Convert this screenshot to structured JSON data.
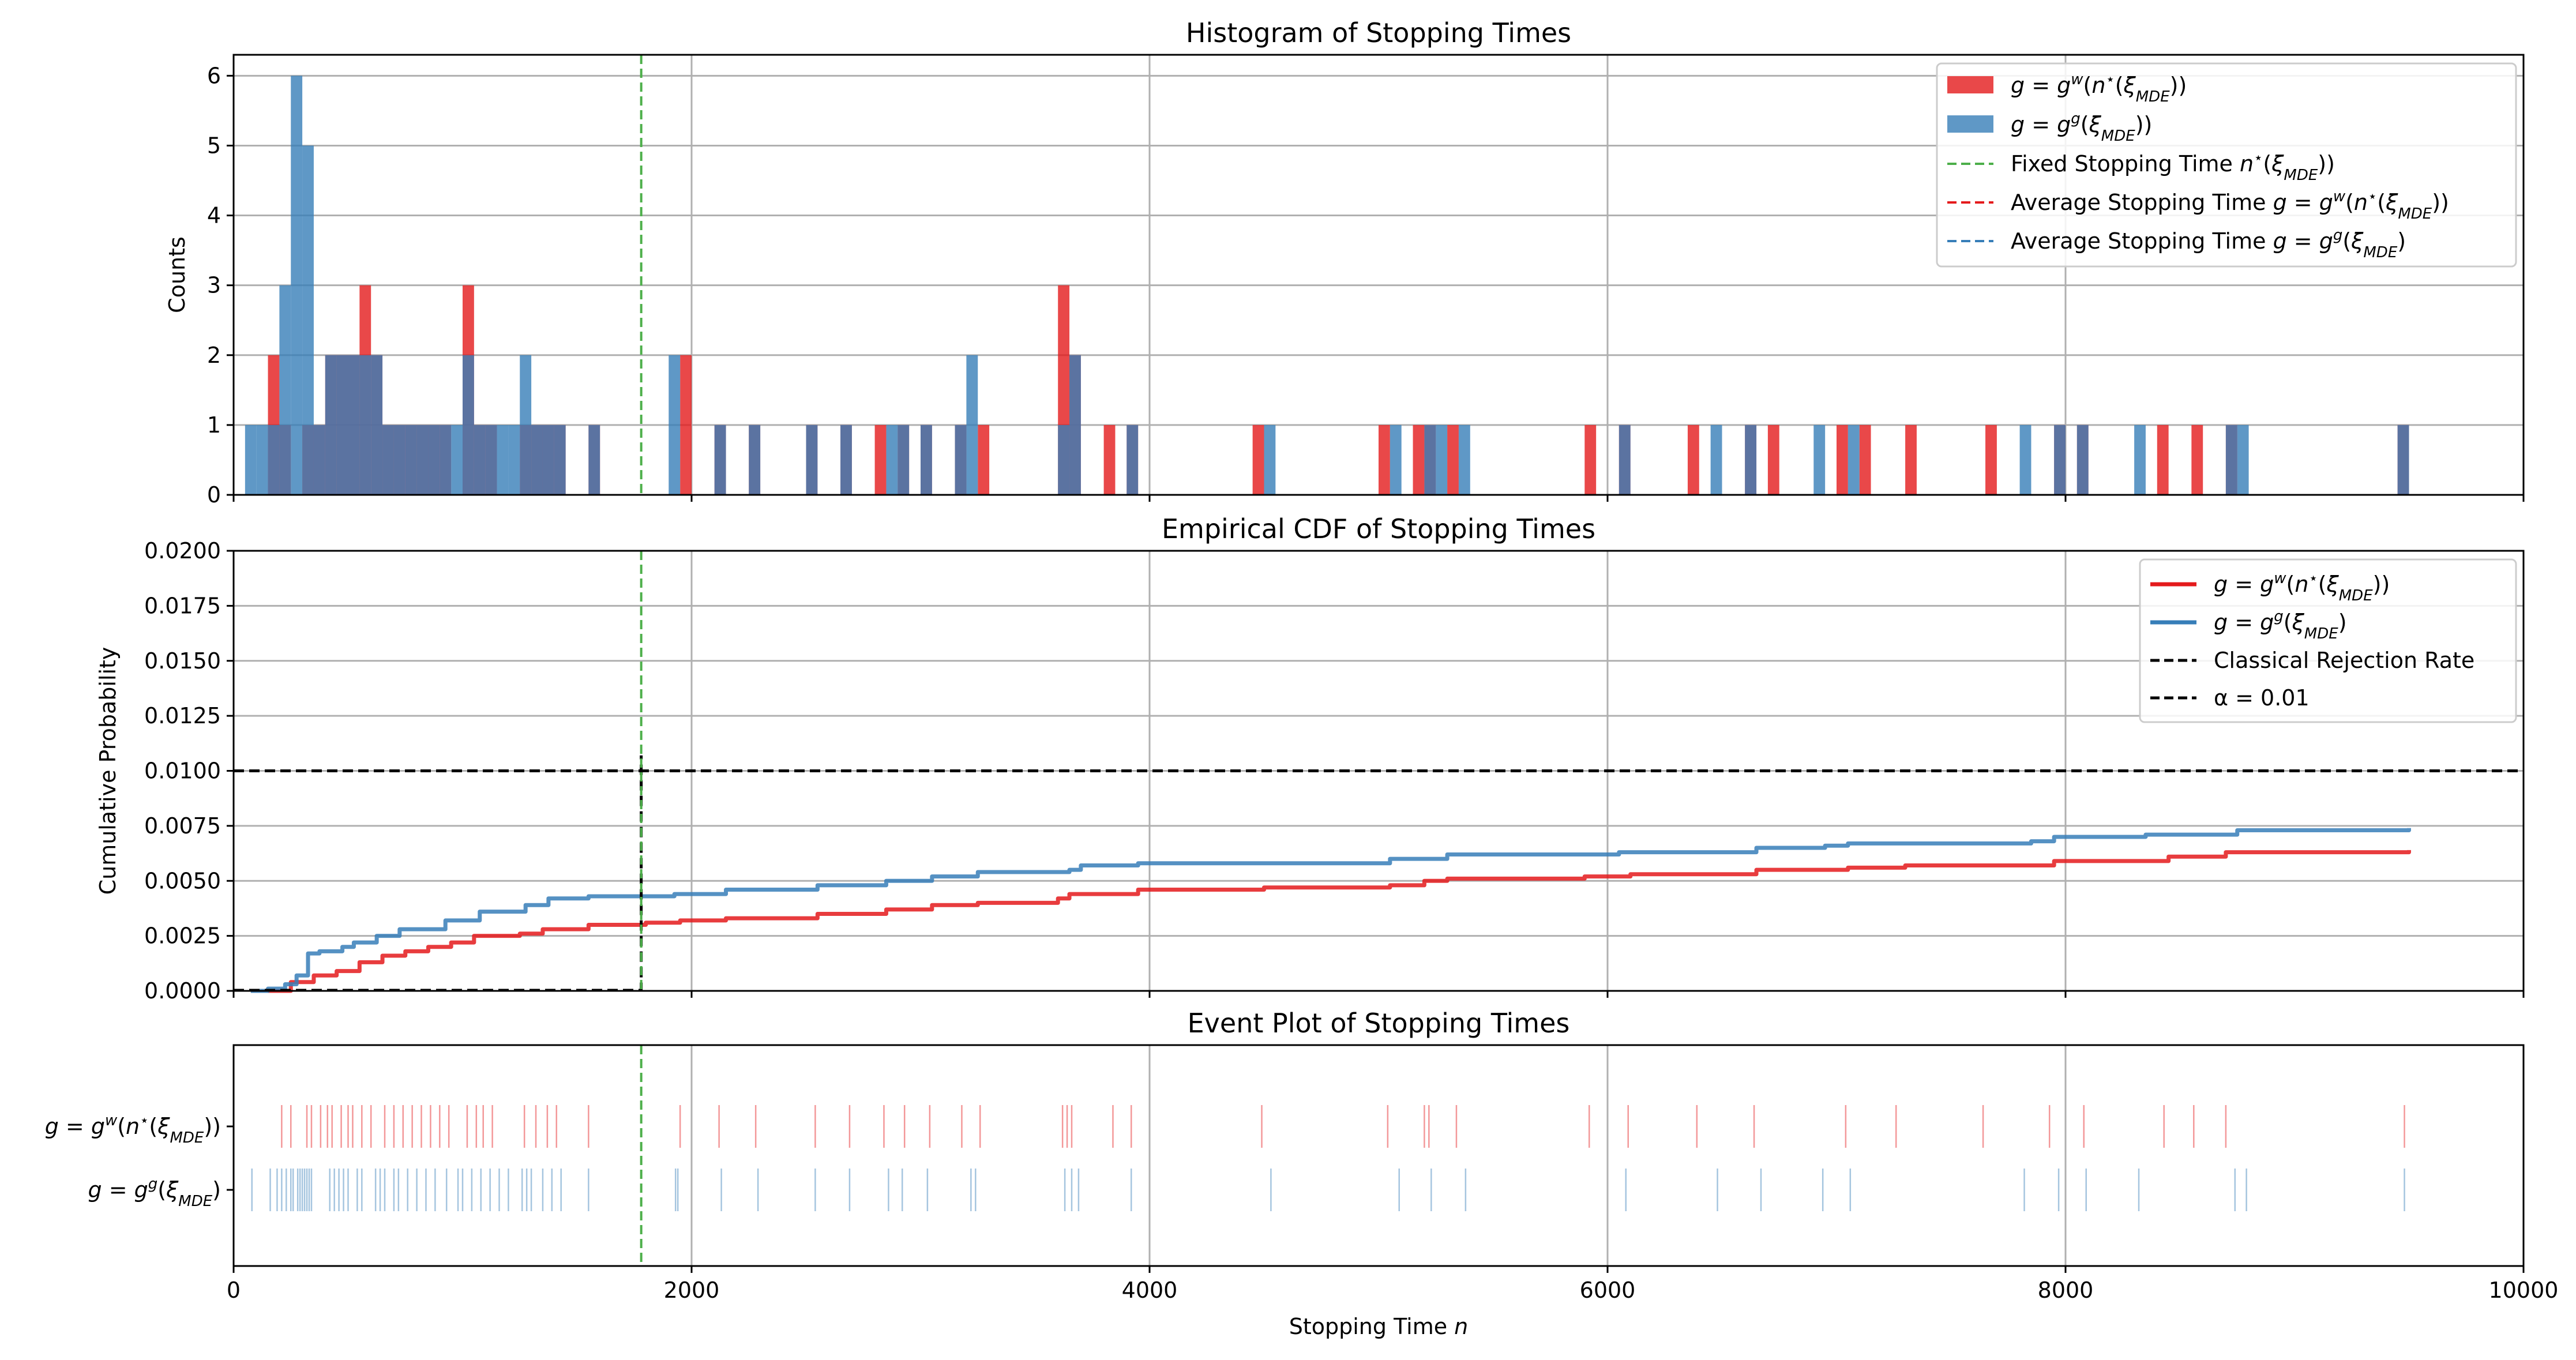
{
  "colors": {
    "red": "#e41a1c",
    "blue": "#377eb8",
    "green": "#4daf4a",
    "black": "#000000"
  },
  "chart_data": [
    {
      "type": "bar",
      "title": "Histogram of Stopping Times",
      "xlabel": "",
      "ylabel": "Counts",
      "xlim": [
        0,
        10000
      ],
      "ylim": [
        0,
        6.3
      ],
      "yticks": [
        "0",
        "1",
        "2",
        "3",
        "4",
        "5",
        "6"
      ],
      "grid": true,
      "legend_position": "top-right",
      "bin_width": 50,
      "series": [
        {
          "name": "g = gʷ(n⋆(ξ_MDE))",
          "bins": [
            [
              175,
              2
            ],
            [
              225,
              1
            ],
            [
              325,
              1
            ],
            [
              375,
              1
            ],
            [
              425,
              2
            ],
            [
              475,
              2
            ],
            [
              525,
              2
            ],
            [
              575,
              3
            ],
            [
              625,
              2
            ],
            [
              675,
              1
            ],
            [
              725,
              1
            ],
            [
              775,
              1
            ],
            [
              825,
              1
            ],
            [
              875,
              1
            ],
            [
              925,
              1
            ],
            [
              1025,
              3
            ],
            [
              1075,
              1
            ],
            [
              1125,
              1
            ],
            [
              1275,
              1
            ],
            [
              1325,
              1
            ],
            [
              1375,
              1
            ],
            [
              1425,
              1
            ],
            [
              1575,
              1
            ],
            [
              1975,
              2
            ],
            [
              2125,
              1
            ],
            [
              2275,
              1
            ],
            [
              2525,
              1
            ],
            [
              2675,
              1
            ],
            [
              2825,
              1
            ],
            [
              2925,
              1
            ],
            [
              3025,
              1
            ],
            [
              3175,
              1
            ],
            [
              3275,
              1
            ],
            [
              3625,
              3
            ],
            [
              3675,
              2
            ],
            [
              3825,
              1
            ],
            [
              3925,
              1
            ],
            [
              4475,
              1
            ],
            [
              5025,
              1
            ],
            [
              5175,
              1
            ],
            [
              5225,
              1
            ],
            [
              5325,
              1
            ],
            [
              5925,
              1
            ],
            [
              6075,
              1
            ],
            [
              6375,
              1
            ],
            [
              6625,
              1
            ],
            [
              6725,
              1
            ],
            [
              7025,
              1
            ],
            [
              7125,
              1
            ],
            [
              7325,
              1
            ],
            [
              7675,
              1
            ],
            [
              7975,
              1
            ],
            [
              8075,
              1
            ],
            [
              8425,
              1
            ],
            [
              8575,
              1
            ],
            [
              8725,
              1
            ],
            [
              9475,
              1
            ]
          ]
        },
        {
          "name": "g = gᵍ(ξ_MDE))",
          "bins": [
            [
              75,
              1
            ],
            [
              125,
              1
            ],
            [
              175,
              1
            ],
            [
              225,
              3
            ],
            [
              275,
              6
            ],
            [
              325,
              5
            ],
            [
              375,
              1
            ],
            [
              425,
              2
            ],
            [
              475,
              2
            ],
            [
              525,
              2
            ],
            [
              575,
              2
            ],
            [
              625,
              2
            ],
            [
              675,
              1
            ],
            [
              725,
              1
            ],
            [
              775,
              1
            ],
            [
              825,
              1
            ],
            [
              875,
              1
            ],
            [
              925,
              1
            ],
            [
              975,
              1
            ],
            [
              1025,
              2
            ],
            [
              1075,
              1
            ],
            [
              1125,
              1
            ],
            [
              1175,
              1
            ],
            [
              1225,
              1
            ],
            [
              1275,
              2
            ],
            [
              1325,
              1
            ],
            [
              1375,
              1
            ],
            [
              1425,
              1
            ],
            [
              1575,
              1
            ],
            [
              1925,
              2
            ],
            [
              2125,
              1
            ],
            [
              2275,
              1
            ],
            [
              2525,
              1
            ],
            [
              2675,
              1
            ],
            [
              2875,
              1
            ],
            [
              2925,
              1
            ],
            [
              3025,
              1
            ],
            [
              3175,
              1
            ],
            [
              3225,
              2
            ],
            [
              3625,
              1
            ],
            [
              3675,
              2
            ],
            [
              3925,
              1
            ],
            [
              4525,
              1
            ],
            [
              5075,
              1
            ],
            [
              5225,
              1
            ],
            [
              5275,
              1
            ],
            [
              5375,
              1
            ],
            [
              6075,
              1
            ],
            [
              6475,
              1
            ],
            [
              6625,
              1
            ],
            [
              6925,
              1
            ],
            [
              7075,
              1
            ],
            [
              7825,
              1
            ],
            [
              7975,
              1
            ],
            [
              8075,
              1
            ],
            [
              8325,
              1
            ],
            [
              8725,
              1
            ],
            [
              8775,
              1
            ],
            [
              9475,
              1
            ]
          ]
        }
      ],
      "fixed_stopping_time": 1780,
      "legend": [
        "Fixed Stopping Time n⋆(ξ_MDE))",
        "Average Stopping Time g = gʷ(n⋆(ξ_MDE))",
        "Average Stopping Time g = gᵍ(ξ_MDE)"
      ]
    },
    {
      "type": "line",
      "title": "Empirical CDF of Stopping Times",
      "xlabel": "",
      "ylabel": "Cumulative Probability",
      "xlim": [
        0,
        10000
      ],
      "ylim": [
        0,
        0.02
      ],
      "yticks": [
        "0.0000",
        "0.0025",
        "0.0050",
        "0.0075",
        "0.0100",
        "0.0125",
        "0.0150",
        "0.0175",
        "0.0200"
      ],
      "grid": true,
      "legend_position": "top-right",
      "series": [
        {
          "name": "g = gʷ(n⋆(ξ_MDE))",
          "x": [
            150,
            250,
            350,
            450,
            550,
            650,
            750,
            850,
            950,
            1050,
            1250,
            1350,
            1550,
            1800,
            1950,
            2150,
            2550,
            2850,
            3050,
            3250,
            3600,
            3650,
            3950,
            4500,
            5050,
            5200,
            5300,
            5900,
            6100,
            6650,
            7050,
            7300,
            7950,
            8450,
            8700,
            9500
          ],
          "y": [
            0,
            0.0004,
            0.0007,
            0.0009,
            0.0013,
            0.0016,
            0.0018,
            0.002,
            0.0022,
            0.0025,
            0.0026,
            0.0028,
            0.003,
            0.0031,
            0.0032,
            0.0033,
            0.0035,
            0.0037,
            0.0039,
            0.004,
            0.0042,
            0.0044,
            0.0046,
            0.0047,
            0.0048,
            0.005,
            0.0051,
            0.0052,
            0.0053,
            0.0055,
            0.0056,
            0.0057,
            0.0059,
            0.0061,
            0.0063,
            0.0064
          ]
        },
        {
          "name": "g = gᵍ(ξ_MDE)",
          "x": [
            75,
            150,
            225,
            275,
            325,
            375,
            475,
            525,
            625,
            725,
            925,
            1075,
            1275,
            1375,
            1550,
            1925,
            2150,
            2550,
            2850,
            3050,
            3250,
            3650,
            3700,
            3950,
            5050,
            5300,
            6050,
            6650,
            6950,
            7050,
            7850,
            7950,
            8350,
            8750,
            9500
          ],
          "y": [
            0,
            0.0001,
            0.0003,
            0.0007,
            0.0017,
            0.0018,
            0.002,
            0.0022,
            0.0025,
            0.0028,
            0.0032,
            0.0036,
            0.0039,
            0.0042,
            0.0043,
            0.0044,
            0.0046,
            0.0048,
            0.005,
            0.0052,
            0.0054,
            0.0055,
            0.0057,
            0.0058,
            0.006,
            0.0062,
            0.0063,
            0.0065,
            0.0066,
            0.0067,
            0.0068,
            0.007,
            0.0071,
            0.0073,
            0.0074
          ]
        }
      ],
      "alpha_line": 0.01,
      "classical_rejection_rate": 0.0107,
      "fixed_stopping_time": 1780,
      "legend": [
        "Classical Rejection Rate",
        "α = 0.01"
      ]
    },
    {
      "type": "scatter",
      "title": "Event Plot of Stopping Times",
      "xlabel": "Stopping Time n",
      "ylabel": "",
      "xlim": [
        0,
        10000
      ],
      "xticks": [
        "0",
        "2000",
        "4000",
        "6000",
        "8000",
        "10000"
      ],
      "grid": true,
      "series": [
        {
          "name": "g = gʷ(n⋆(ξ_MDE))",
          "events": [
            210,
            250,
            320,
            340,
            380,
            410,
            430,
            470,
            500,
            520,
            560,
            600,
            660,
            700,
            740,
            780,
            820,
            860,
            900,
            940,
            1020,
            1060,
            1090,
            1130,
            1270,
            1320,
            1370,
            1410,
            1550,
            1950,
            2120,
            2280,
            2540,
            2690,
            2840,
            2930,
            3040,
            3180,
            3260,
            3620,
            3640,
            3660,
            3840,
            3920,
            4490,
            5040,
            5200,
            5220,
            5340,
            5920,
            6090,
            6390,
            6640,
            7040,
            7260,
            7640,
            7930,
            8080,
            8430,
            8560,
            8700,
            9480
          ]
        },
        {
          "name": "g = gᵍ(ξ_MDE)",
          "events": [
            80,
            160,
            190,
            210,
            230,
            250,
            260,
            280,
            290,
            300,
            310,
            320,
            330,
            340,
            420,
            440,
            460,
            480,
            500,
            540,
            560,
            620,
            640,
            660,
            700,
            720,
            760,
            800,
            840,
            880,
            930,
            980,
            1000,
            1040,
            1080,
            1120,
            1160,
            1200,
            1260,
            1280,
            1300,
            1350,
            1390,
            1430,
            1550,
            1930,
            1940,
            2130,
            2290,
            2540,
            2690,
            2860,
            2920,
            3030,
            3220,
            3240,
            3630,
            3660,
            3690,
            3920,
            4530,
            5090,
            5230,
            5380,
            6080,
            6480,
            6670,
            6940,
            7060,
            7820,
            7970,
            8090,
            8320,
            8740,
            8790,
            9480
          ]
        }
      ],
      "fixed_stopping_time": 1780
    }
  ]
}
